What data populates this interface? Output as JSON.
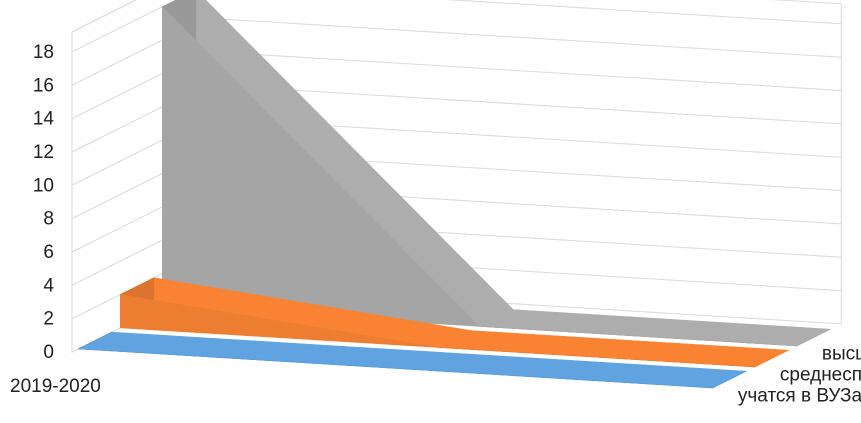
{
  "chart_data": {
    "type": "area",
    "subtype": "3d-area",
    "title": "",
    "xlabel": "",
    "ylabel": "",
    "ylim": [
      0,
      18
    ],
    "yticks": [
      0,
      2,
      4,
      6,
      8,
      10,
      12,
      14,
      16,
      18
    ],
    "ytick_labels": [
      "0",
      "2",
      "4",
      "6",
      "8",
      "10",
      "12",
      "14",
      "16",
      "18"
    ],
    "categories": [
      "2019-2020",
      "",
      ""
    ],
    "category_labels_shown": [
      "2019-2020"
    ],
    "grid": true,
    "legend": "none",
    "series": [
      {
        "name": "учатся в ВУЗах",
        "values": [
          0,
          0,
          0
        ],
        "color": "#5B9BD5"
      },
      {
        "name": "среднеспециальное",
        "values": [
          2,
          0,
          0
        ],
        "color": "#ED7D31"
      },
      {
        "name": "высшее",
        "values": [
          18,
          0,
          0
        ],
        "color": "#A5A5A5"
      }
    ]
  }
}
